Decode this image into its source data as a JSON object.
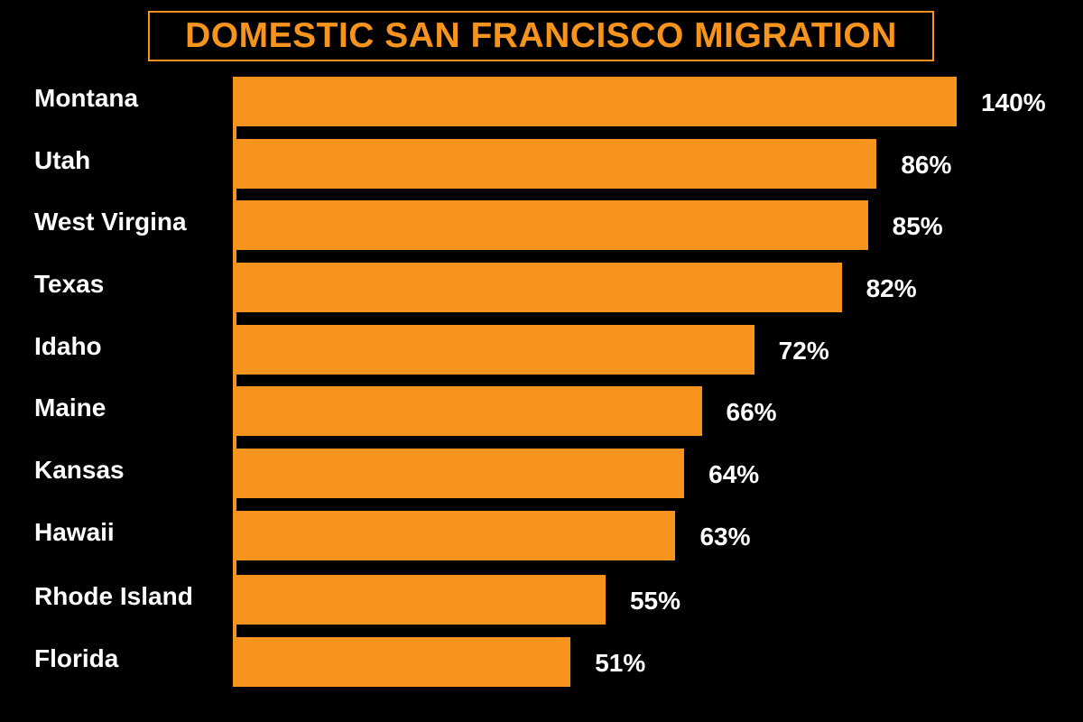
{
  "chart_data": {
    "type": "bar",
    "orientation": "horizontal",
    "title": "DOMESTIC SAN FRANCISCO MIGRATION",
    "categories": [
      "Montana",
      "Utah",
      "West Virgina",
      "Texas",
      "Idaho",
      "Maine",
      "Kansas",
      "Hawaii",
      "Rhode Island",
      "Florida"
    ],
    "values": [
      140,
      86,
      85,
      82,
      72,
      66,
      64,
      63,
      55,
      51
    ],
    "value_labels": [
      "140%",
      "86%",
      "85%",
      "82%",
      "72%",
      "66%",
      "64%",
      "63%",
      "55%",
      "51%"
    ],
    "unit": "%",
    "xlabel": "",
    "ylabel": "",
    "grid": false,
    "legend": "none",
    "colors": {
      "bar": "#f7941d",
      "background": "#000000",
      "text": "#ffffff",
      "title": "#f7941d"
    }
  }
}
